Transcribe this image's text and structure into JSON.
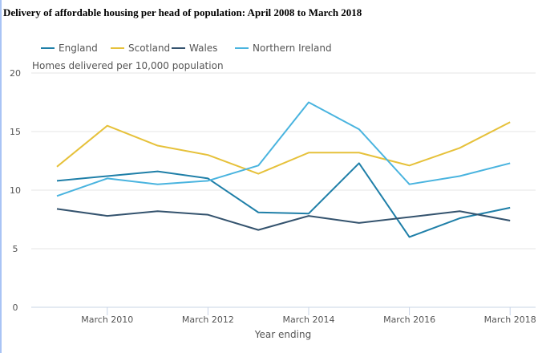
{
  "chart_data": {
    "type": "line",
    "title": "Delivery of affordable housing per head of population: April 2008 to March 2018",
    "ylabel": "Homes delivered per 10,000 population",
    "xlabel": "Year ending",
    "ylim": [
      0,
      20
    ],
    "yticks": [
      "0",
      "5",
      "10",
      "15",
      "20"
    ],
    "x": [
      "March 2009",
      "March 2010",
      "March 2011",
      "March 2012",
      "March 2013",
      "March 2014",
      "March 2015",
      "March 2016",
      "March 2017",
      "March 2018"
    ],
    "xtick_labels": [
      "March 2010",
      "March 2012",
      "March 2014",
      "March 2016",
      "March 2018"
    ],
    "grid": "horizontal",
    "legend_placement": "top",
    "series": [
      {
        "name": "England",
        "color": "#1f7fa8",
        "values": [
          10.8,
          11.2,
          11.6,
          11.0,
          8.1,
          8.0,
          12.3,
          6.0,
          7.6,
          8.5
        ]
      },
      {
        "name": "Scotland",
        "color": "#e6c13a",
        "values": [
          12.0,
          15.5,
          13.8,
          13.0,
          11.4,
          13.2,
          13.2,
          12.1,
          13.6,
          15.8
        ]
      },
      {
        "name": "Wales",
        "color": "#34536e",
        "values": [
          8.4,
          7.8,
          8.2,
          7.9,
          6.6,
          7.8,
          7.2,
          7.7,
          8.2,
          7.4
        ]
      },
      {
        "name": "Northern Ireland",
        "color": "#4ab4df",
        "values": [
          9.5,
          11.0,
          10.5,
          10.8,
          12.1,
          17.5,
          15.2,
          10.5,
          11.2,
          12.3
        ]
      }
    ]
  }
}
